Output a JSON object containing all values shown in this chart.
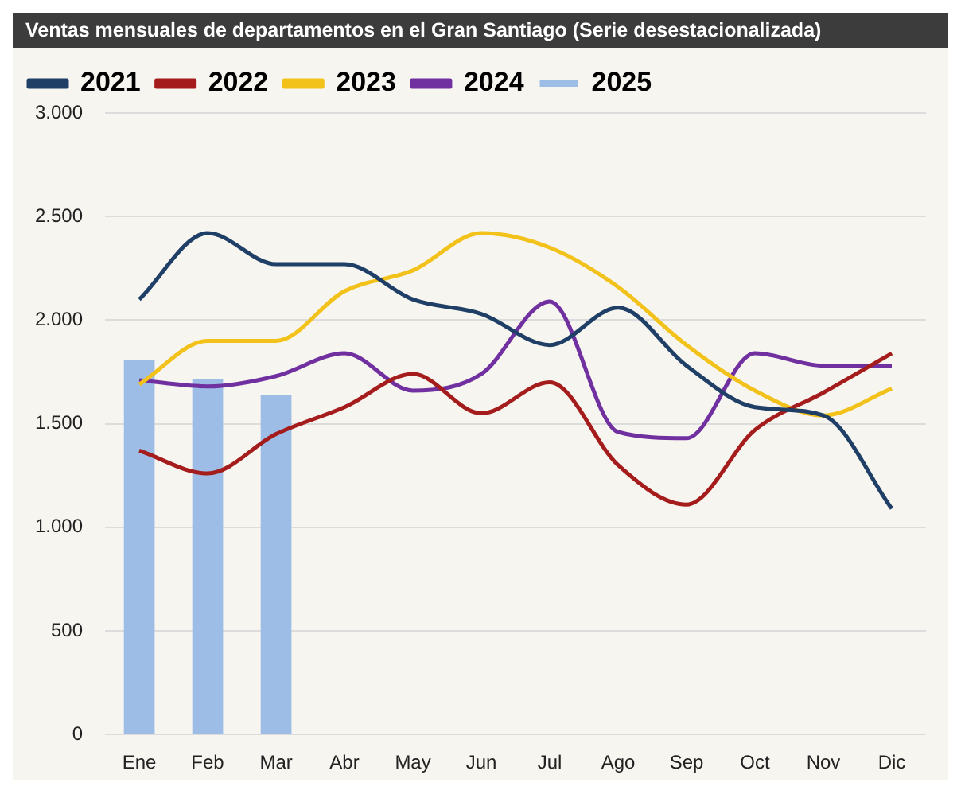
{
  "chart_data": {
    "type": "line",
    "title": "Ventas mensuales de departamentos en el Gran Santiago (Serie desestacionalizada)",
    "categories": [
      "Ene",
      "Feb",
      "Mar",
      "Abr",
      "May",
      "Jun",
      "Jul",
      "Ago",
      "Sep",
      "Oct",
      "Nov",
      "Dic"
    ],
    "series": [
      {
        "name": "2025",
        "type": "bar",
        "color": "#9dbde6",
        "values": [
          1810,
          1715,
          1640,
          null,
          null,
          null,
          null,
          null,
          null,
          null,
          null,
          null
        ]
      },
      {
        "name": "2021",
        "color": "#1f3f66",
        "values": [
          2100,
          2420,
          2270,
          2270,
          2100,
          2030,
          1880,
          2060,
          1780,
          1580,
          1540,
          1090
        ]
      },
      {
        "name": "2022",
        "color": "#a51c1c",
        "values": [
          1370,
          1260,
          1450,
          1580,
          1740,
          1550,
          1700,
          1300,
          1110,
          1470,
          1650,
          1840
        ]
      },
      {
        "name": "2023",
        "color": "#f2c21a",
        "values": [
          1690,
          1900,
          1900,
          2140,
          2240,
          2420,
          2350,
          2160,
          1880,
          1660,
          1540,
          1670
        ]
      },
      {
        "name": "2024",
        "color": "#7030a0",
        "values": [
          1710,
          1680,
          1730,
          1840,
          1660,
          1740,
          2090,
          1460,
          1430,
          1840,
          1780,
          1780
        ]
      }
    ],
    "ylim": [
      0,
      3000
    ],
    "yticks": [
      {
        "value": 0,
        "label": "0"
      },
      {
        "value": 500,
        "label": "500"
      },
      {
        "value": 1000,
        "label": "1.000"
      },
      {
        "value": 1500,
        "label": "1.500"
      },
      {
        "value": 2000,
        "label": "2.000"
      },
      {
        "value": 2500,
        "label": "2.500"
      },
      {
        "value": 3000,
        "label": "3.000"
      }
    ],
    "grid": "y",
    "legend": "top left",
    "marker": "none",
    "line_style": "solid"
  }
}
